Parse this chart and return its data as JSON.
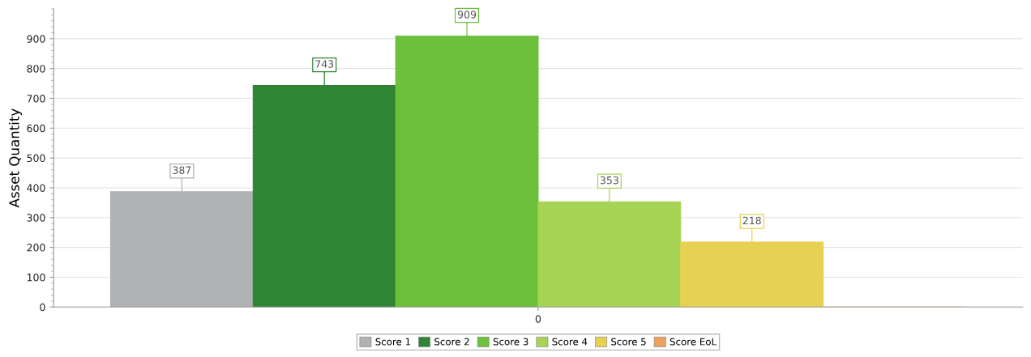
{
  "chart_data": {
    "type": "bar",
    "ylabel": "Asset Quantity",
    "categories": [
      "0"
    ],
    "series": [
      {
        "name": "Score 1",
        "color": "#b0b2b3",
        "values": [
          387
        ],
        "value_labels": [
          "387"
        ]
      },
      {
        "name": "Score 2",
        "color": "#2f8534",
        "values": [
          743
        ],
        "value_labels": [
          "743"
        ]
      },
      {
        "name": "Score 3",
        "color": "#6cc03c",
        "values": [
          909
        ],
        "value_labels": [
          "909"
        ]
      },
      {
        "name": "Score 4",
        "color": "#a8d456",
        "values": [
          353
        ],
        "value_labels": [
          "353"
        ]
      },
      {
        "name": "Score 5",
        "color": "#e6d152",
        "values": [
          218
        ],
        "value_labels": [
          "218"
        ]
      },
      {
        "name": "Score EoL",
        "color": "#eda15c",
        "values": [
          0
        ],
        "value_labels": [
          null
        ]
      }
    ],
    "ylim": [
      0,
      1000
    ],
    "yticks": [
      0,
      100,
      200,
      300,
      400,
      500,
      600,
      700,
      800,
      900
    ],
    "grid": "y",
    "legend": "bottom"
  }
}
